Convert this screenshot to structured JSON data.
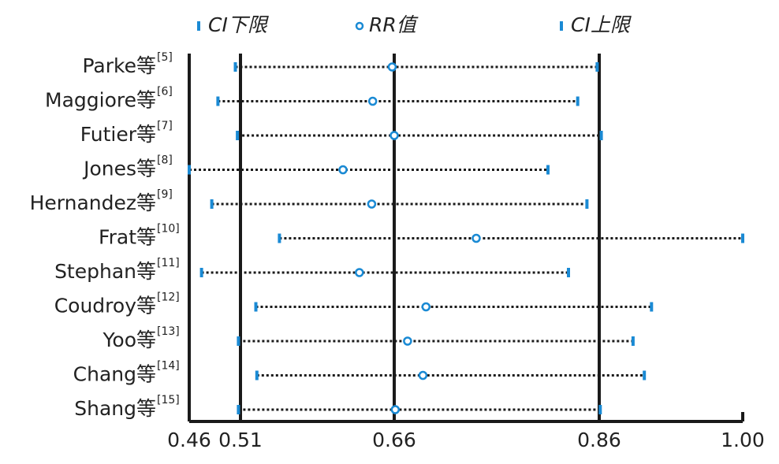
{
  "chart_data": {
    "type": "forest",
    "categories": [
      "Parke等",
      "Maggiore等",
      "Futier等",
      "Jones等",
      "Hernandez等",
      "Frat等",
      "Stephan等",
      "Coudroy等",
      "Yoo等",
      "Chang等",
      "Shang等"
    ],
    "refs": [
      "[5]",
      "[6]",
      "[7]",
      "[8]",
      "[9]",
      "[10]",
      "[11]",
      "[12]",
      "[13]",
      "[14]",
      "[15]"
    ],
    "series": [
      {
        "name": "CI下限",
        "color": "#1a8ad4",
        "values": [
          0.505,
          0.488,
          0.507,
          0.46,
          0.482,
          0.548,
          0.472,
          0.525,
          0.508,
          0.526,
          0.508
        ]
      },
      {
        "name": "RR值",
        "color": "#1a8ad4",
        "values": [
          0.658,
          0.639,
          0.66,
          0.61,
          0.638,
          0.74,
          0.626,
          0.691,
          0.673,
          0.688,
          0.661
        ]
      },
      {
        "name": "CI上限",
        "color": "#1a8ad4",
        "values": [
          0.858,
          0.839,
          0.862,
          0.81,
          0.848,
          1.0,
          0.83,
          0.911,
          0.893,
          0.904,
          0.861
        ]
      }
    ],
    "xlim": [
      0.46,
      1.0
    ],
    "xticks": [
      0.46,
      0.51,
      0.66,
      0.86,
      {
        "value": 1.0,
        "label": "1.00"
      }
    ],
    "grid": true
  }
}
